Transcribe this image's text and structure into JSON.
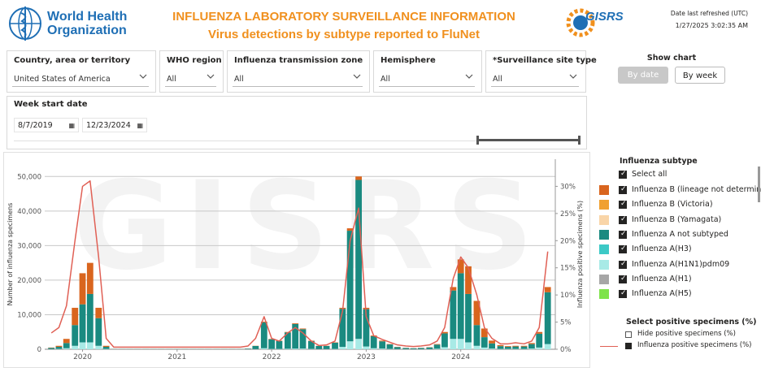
{
  "header": {
    "org_lines": [
      "World Health",
      "Organization"
    ],
    "title": "INFLUENZA LABORATORY SURVEILLANCE INFORMATION",
    "subtitle": "Virus detections by subtype reported to FluNet",
    "gisrs": "GISRS",
    "refreshed_label": "Date last refreshed (UTC)",
    "refreshed": "1/27/2025 3:02:35 AM"
  },
  "filters": [
    {
      "label": "Country, area or territory",
      "value": "United States of America"
    },
    {
      "label": "WHO region",
      "value": "All"
    },
    {
      "label": "Influenza transmission zone",
      "value": "All"
    },
    {
      "label": "Hemisphere",
      "value": "All"
    },
    {
      "label": "*Surveillance site type",
      "value": "All"
    }
  ],
  "week": {
    "label": "Week start date",
    "start": "8/7/2019",
    "end": "12/23/2024"
  },
  "show_chart": {
    "label": "Show chart",
    "options": [
      "By date",
      "By week"
    ]
  },
  "subtype_panel": {
    "title": "Influenza subtype",
    "select_all": "Select all",
    "others": [
      {
        "name": "Influenza B (Victoria)",
        "color": "#f0a030"
      },
      {
        "name": "Influenza B (Yamagata)",
        "color": "#f9d5a8"
      },
      {
        "name": "Influenza A(H3)",
        "color": "#3cc9c6"
      },
      {
        "name": "Influenza A(H1)",
        "color": "#a6a6a6"
      },
      {
        "name": "Influenza A(H5)",
        "color": "#7ee34a"
      }
    ]
  },
  "positive_panel": {
    "title": "Select positive specimens (%)",
    "hide": "Hide positive specimens (%)"
  },
  "chart_data": {
    "type": "bar",
    "stacked": true,
    "watermark": "GISRS",
    "ylabel": "Number of influenza specimens",
    "y2label": "Influenza positive specimens (%)",
    "xlim": [
      2019.6,
      2025.0
    ],
    "xticks": [
      2020,
      2021,
      2022,
      2023,
      2024
    ],
    "ylim": [
      0,
      55000
    ],
    "yticks": [
      0,
      {
        "value": 10000,
        "label": "10,000"
      },
      {
        "value": 20000,
        "label": "20,000"
      },
      {
        "value": 30000,
        "label": "30,000"
      },
      {
        "value": 40000,
        "label": "40,000"
      },
      {
        "value": 50000,
        "label": "50,000"
      }
    ],
    "y2lim": [
      0,
      35
    ],
    "y2ticks": [
      {
        "value": 0,
        "label": "0%"
      },
      {
        "value": 5,
        "label": "5%"
      },
      {
        "value": 10,
        "label": "10%"
      },
      {
        "value": 15,
        "label": "15%"
      },
      {
        "value": 20,
        "label": "20%"
      },
      {
        "value": 25,
        "label": "25%"
      },
      {
        "value": 30,
        "label": "30%"
      }
    ],
    "grid": true,
    "x": [
      2019.67,
      2019.75,
      2019.83,
      2019.92,
      2020.0,
      2020.08,
      2020.17,
      2020.25,
      2020.33,
      2020.42,
      2020.5,
      2020.58,
      2020.67,
      2020.75,
      2020.83,
      2020.92,
      2021.0,
      2021.08,
      2021.17,
      2021.25,
      2021.33,
      2021.42,
      2021.5,
      2021.58,
      2021.67,
      2021.75,
      2021.83,
      2021.92,
      2022.0,
      2022.08,
      2022.17,
      2022.25,
      2022.33,
      2022.42,
      2022.5,
      2022.58,
      2022.67,
      2022.75,
      2022.83,
      2022.92,
      2023.0,
      2023.08,
      2023.17,
      2023.25,
      2023.33,
      2023.42,
      2023.5,
      2023.58,
      2023.67,
      2023.75,
      2023.83,
      2023.92,
      2024.0,
      2024.08,
      2024.17,
      2024.25,
      2024.33,
      2024.42,
      2024.5,
      2024.58,
      2024.67,
      2024.75,
      2024.83,
      2024.92
    ],
    "series": [
      {
        "name": "Influenza A(H1N1)pdm09",
        "color": "#a8eae6",
        "values": [
          50,
          100,
          300,
          1000,
          2000,
          2000,
          1000,
          100,
          20,
          20,
          20,
          20,
          20,
          20,
          20,
          20,
          20,
          20,
          20,
          20,
          20,
          20,
          20,
          20,
          20,
          20,
          50,
          300,
          100,
          100,
          150,
          200,
          200,
          100,
          50,
          50,
          100,
          700,
          2300,
          3000,
          800,
          300,
          200,
          100,
          60,
          40,
          30,
          40,
          60,
          150,
          600,
          3000,
          3000,
          2000,
          1000,
          500,
          200,
          100,
          100,
          100,
          100,
          200,
          500,
          1500
        ]
      },
      {
        "name": "Influenza A not subtyped",
        "color": "#1a8a80",
        "values": [
          350,
          600,
          1500,
          6000,
          11000,
          14000,
          8000,
          600,
          60,
          60,
          60,
          60,
          60,
          60,
          60,
          60,
          60,
          60,
          60,
          60,
          60,
          60,
          60,
          60,
          60,
          160,
          900,
          7500,
          2800,
          2300,
          4700,
          7100,
          5600,
          2300,
          900,
          900,
          1800,
          11000,
          32000,
          46000,
          10800,
          3500,
          2100,
          1300,
          580,
          320,
          240,
          320,
          480,
          1200,
          4000,
          14000,
          19000,
          14000,
          6000,
          3000,
          1500,
          800,
          600,
          700,
          700,
          1300,
          4000,
          15000
        ]
      },
      {
        "name": "Influenza B (lineage not determined)",
        "color": "#d9651e",
        "values": [
          100,
          300,
          1200,
          5000,
          9000,
          9000,
          3000,
          300,
          20,
          20,
          20,
          20,
          20,
          20,
          20,
          20,
          20,
          20,
          20,
          20,
          20,
          20,
          20,
          20,
          20,
          20,
          50,
          200,
          100,
          100,
          150,
          200,
          200,
          100,
          50,
          50,
          100,
          300,
          700,
          1000,
          400,
          200,
          200,
          100,
          60,
          40,
          30,
          40,
          60,
          150,
          400,
          1000,
          4000,
          8000,
          7000,
          2500,
          800,
          300,
          200,
          200,
          200,
          300,
          500,
          1500
        ]
      },
      {
        "name": "Influenza positive specimens (%)",
        "type": "line",
        "axis": "y2",
        "color": "#e06055",
        "values": [
          3,
          4,
          8,
          20,
          30,
          31,
          17,
          2,
          0.4,
          0.4,
          0.4,
          0.4,
          0.4,
          0.4,
          0.4,
          0.4,
          0.4,
          0.4,
          0.4,
          0.4,
          0.4,
          0.4,
          0.4,
          0.4,
          0.4,
          0.6,
          2,
          6,
          2,
          1.5,
          3,
          4,
          3,
          1.5,
          0.7,
          0.8,
          1.5,
          7,
          20,
          26,
          6,
          2.5,
          1.8,
          1.3,
          0.8,
          0.6,
          0.5,
          0.6,
          0.8,
          1.5,
          4,
          13,
          17,
          15,
          10,
          4,
          2,
          1,
          1,
          1.2,
          1,
          1.5,
          4,
          18
        ]
      }
    ]
  }
}
